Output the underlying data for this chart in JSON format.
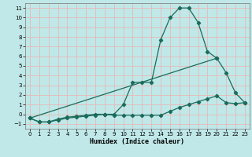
{
  "xlabel": "Humidex (Indice chaleur)",
  "ylabel": "",
  "bg_color": "#c0e8e8",
  "grid_color": "#e8b8b8",
  "line_color": "#1a6b5a",
  "xlim": [
    -0.5,
    23.5
  ],
  "ylim": [
    -1.5,
    11.5
  ],
  "xticks": [
    0,
    1,
    2,
    3,
    4,
    5,
    6,
    7,
    8,
    9,
    10,
    11,
    12,
    13,
    14,
    15,
    16,
    17,
    18,
    19,
    20,
    21,
    22,
    23
  ],
  "yticks": [
    -1,
    0,
    1,
    2,
    3,
    4,
    5,
    6,
    7,
    8,
    9,
    10,
    11
  ],
  "line1_x": [
    0,
    1,
    2,
    3,
    4,
    5,
    6,
    7,
    8,
    9,
    10,
    11,
    12,
    13,
    14,
    15,
    16,
    17,
    18,
    19,
    20,
    21,
    22,
    23
  ],
  "line1_y": [
    -0.4,
    -0.8,
    -0.8,
    -0.6,
    -0.4,
    -0.3,
    -0.2,
    -0.1,
    0.0,
    0.0,
    1.0,
    3.3,
    3.3,
    3.3,
    7.7,
    10.0,
    11.0,
    11.0,
    9.5,
    6.5,
    5.8,
    4.3,
    2.2,
    1.2
  ],
  "line2_x": [
    0,
    1,
    2,
    3,
    4,
    5,
    6,
    7,
    8,
    9,
    10,
    11,
    12,
    13,
    14,
    15,
    16,
    17,
    18,
    19,
    20,
    21,
    22,
    23
  ],
  "line2_y": [
    -0.4,
    -0.8,
    -0.8,
    -0.5,
    -0.3,
    -0.2,
    -0.1,
    0.0,
    0.0,
    -0.1,
    -0.1,
    -0.1,
    -0.1,
    -0.1,
    -0.1,
    0.3,
    0.7,
    1.0,
    1.3,
    1.6,
    1.9,
    1.2,
    1.1,
    1.2
  ],
  "line3_x": [
    0,
    20
  ],
  "line3_y": [
    -0.4,
    5.8
  ]
}
